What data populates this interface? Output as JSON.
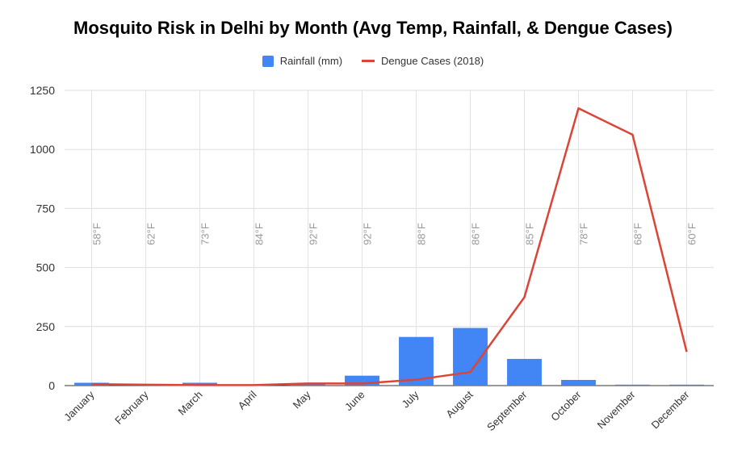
{
  "chart_data": {
    "type": "bar",
    "title": "Mosquito Risk in Delhi by Month (Avg Temp, Rainfall, & Dengue Cases)",
    "categories": [
      "January",
      "February",
      "March",
      "April",
      "May",
      "June",
      "July",
      "August",
      "September",
      "October",
      "November",
      "December"
    ],
    "series": [
      {
        "name": "Rainfall (mm)",
        "type": "bar",
        "color": "#4285f4",
        "values": [
          12,
          5,
          12,
          4,
          10,
          42,
          206,
          244,
          113,
          24,
          4,
          4
        ]
      },
      {
        "name": "Dengue Cases (2018)",
        "type": "line",
        "color": "#db4437",
        "values": [
          6,
          4,
          2,
          2,
          9,
          9,
          25,
          57,
          374,
          1174,
          1062,
          143
        ]
      }
    ],
    "temp_labels": [
      "58°F",
      "62°F",
      "73°F",
      "84°F",
      "92°F",
      "92°F",
      "88°F",
      "86°F",
      "85°F",
      "78°F",
      "68°F",
      "60°F"
    ],
    "yticks": [
      0,
      250,
      500,
      750,
      1000,
      1250
    ],
    "ylim": [
      0,
      1250
    ],
    "grid": true,
    "legend_position": "top"
  }
}
